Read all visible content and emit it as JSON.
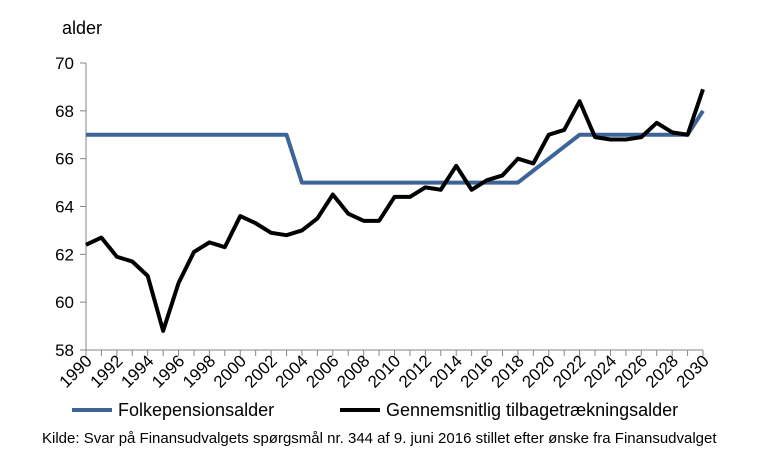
{
  "chart_data": {
    "type": "line",
    "title": "",
    "ylabel": "alder",
    "xlabel": "",
    "ylim": [
      58,
      70
    ],
    "yticks": [
      58,
      60,
      62,
      64,
      66,
      68,
      70
    ],
    "x": [
      1990,
      1991,
      1992,
      1993,
      1994,
      1995,
      1996,
      1997,
      1998,
      1999,
      2000,
      2001,
      2002,
      2003,
      2004,
      2005,
      2006,
      2007,
      2008,
      2009,
      2010,
      2011,
      2012,
      2013,
      2014,
      2015,
      2016,
      2017,
      2018,
      2019,
      2020,
      2021,
      2022,
      2023,
      2024,
      2025,
      2026,
      2027,
      2028,
      2029,
      2030
    ],
    "xtick_labels": [
      "1990",
      "1992",
      "1994",
      "1996",
      "1998",
      "2000",
      "2002",
      "2004",
      "2006",
      "2008",
      "2010",
      "2012",
      "2014",
      "2016",
      "2018",
      "2020",
      "2022",
      "2024",
      "2026",
      "2028",
      "2030"
    ],
    "grid": false,
    "legend_position": "bottom",
    "series": [
      {
        "name": "Folkepensionsalder",
        "color": "#3c6496",
        "values": [
          67,
          67,
          67,
          67,
          67,
          67,
          67,
          67,
          67,
          67,
          67,
          67,
          67,
          67,
          65,
          65,
          65,
          65,
          65,
          65,
          65,
          65,
          65,
          65,
          65,
          65,
          65,
          65,
          65,
          65.5,
          66,
          66.5,
          67,
          67,
          67,
          67,
          67,
          67,
          67,
          67,
          68
        ]
      },
      {
        "name": "Gennemsnitlig tilbagetrækningsalder",
        "color": "#000000",
        "values": [
          62.4,
          62.7,
          61.9,
          61.7,
          61.1,
          58.8,
          60.8,
          62.1,
          62.5,
          62.3,
          63.6,
          63.3,
          62.9,
          62.8,
          63.0,
          63.5,
          64.5,
          63.7,
          63.4,
          63.4,
          64.4,
          64.4,
          64.8,
          64.7,
          65.7,
          64.7,
          65.1,
          65.3,
          66.0,
          65.8,
          67.0,
          67.2,
          68.4,
          66.9,
          66.8,
          66.8,
          66.9,
          67.5,
          67.1,
          67.0,
          68.9
        ]
      }
    ]
  },
  "source": "Kilde: Svar på Finansudvalgets spørgsmål nr. 344 af 9. juni 2016 stillet efter ønske fra Finansudvalget"
}
